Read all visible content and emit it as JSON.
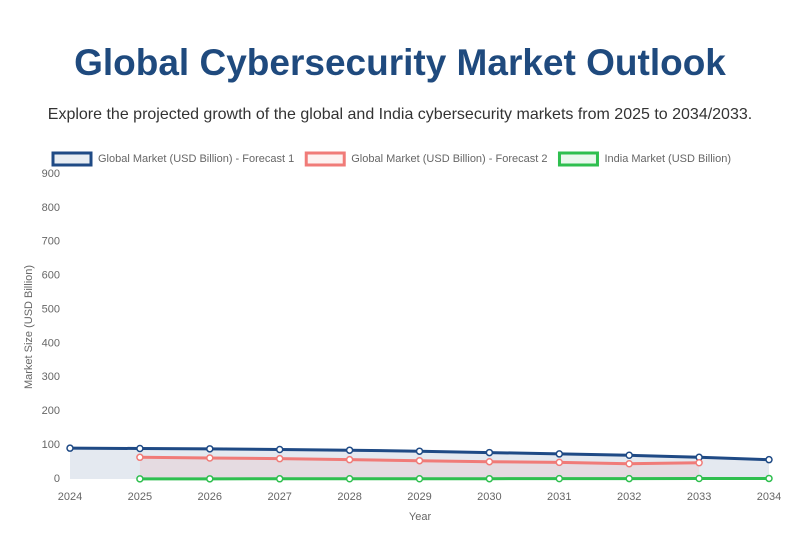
{
  "chart_data": {
    "type": "line",
    "title": "Global Cybersecurity Market Outlook",
    "subtitle": "Explore the projected growth of the global and India cybersecurity markets from 2025 to 2034/2033.",
    "x_label": "Year",
    "y_label": "Market Size (USD Billion)",
    "categories": [
      "2024",
      "2025",
      "2026",
      "2027",
      "2028",
      "2029",
      "2030",
      "2031",
      "2032",
      "2033",
      "2034"
    ],
    "series": [
      {
        "name": "Global Market (USD Billion) - Forecast 1",
        "color": "#1f4a85",
        "fill": true,
        "values": [
          91,
          90,
          89,
          87,
          85,
          82,
          78,
          74,
          70,
          64,
          57
        ]
      },
      {
        "name": "Global Market (USD Billion) - Forecast 2",
        "color": "#f07b78",
        "fill": true,
        "values": [
          null,
          64,
          62,
          60,
          57,
          54,
          51,
          49,
          45,
          48,
          null
        ]
      },
      {
        "name": "India Market (USD Billion)",
        "color": "#2fbf4f",
        "fill": false,
        "values": [
          null,
          0.4,
          0.5,
          0.6,
          0.7,
          0.8,
          0.9,
          1.1,
          1.2,
          1.4,
          1.6
        ]
      }
    ],
    "ylim": [
      0,
      900
    ],
    "yticks": [
      0,
      100,
      200,
      300,
      400,
      500,
      600,
      700,
      800,
      900
    ],
    "grid": false,
    "legend": "top"
  }
}
